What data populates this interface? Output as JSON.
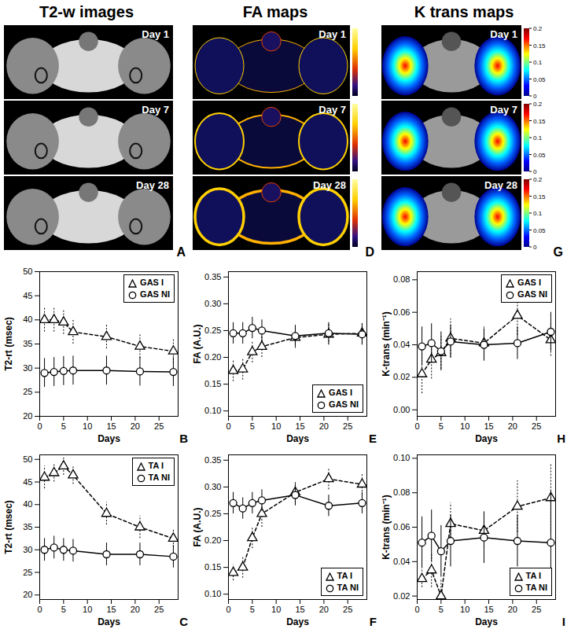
{
  "image_panels": [
    {
      "title": "T2-w images",
      "panel": "A",
      "days": [
        "Day 1",
        "Day 7",
        "Day 28"
      ]
    },
    {
      "title": "FA maps",
      "panel": "D",
      "days": [
        "Day 1",
        "Day 7",
        "Day 28"
      ]
    },
    {
      "title": "K trans maps",
      "panel": "G",
      "days": [
        "Day 1",
        "Day 7",
        "Day 28"
      ],
      "colorbar": {
        "range": [
          0,
          0.2
        ],
        "ticks": [
          0,
          0.05,
          0.1,
          0.15,
          0.2
        ]
      }
    }
  ],
  "chart_data": [
    {
      "type": "line",
      "panel": "B",
      "x_label": "Days",
      "y_label": "T2-rt (msec)",
      "x": [
        1,
        3,
        5,
        7,
        14,
        21,
        28
      ],
      "xlim": [
        0,
        29
      ],
      "xticks": [
        0,
        5,
        10,
        15,
        20,
        25
      ],
      "ylim": [
        20,
        50
      ],
      "yticks": [
        20,
        25,
        30,
        35,
        40,
        45,
        50
      ],
      "grid": false,
      "legend": "top-right",
      "series": [
        {
          "name": "GAS I",
          "color": "#000000",
          "marker": "triangle",
          "line_style": "dashed",
          "values": [
            40,
            40,
            39.5,
            37.5,
            36.5,
            34.5,
            33.5
          ],
          "errors": [
            2.5,
            2.5,
            2.5,
            2.5,
            2.5,
            2.5,
            2.5
          ]
        },
        {
          "name": "GAS NI",
          "color": "#000000",
          "marker": "circle",
          "line_style": "solid",
          "values": [
            29,
            29.2,
            29.4,
            29.5,
            29.5,
            29.3,
            29.2
          ],
          "errors": [
            3,
            3,
            3,
            3,
            3,
            3,
            3
          ]
        }
      ]
    },
    {
      "type": "line",
      "panel": "E",
      "x_label": "Days",
      "y_label": "FA (A.U.)",
      "x": [
        1,
        3,
        5,
        7,
        14,
        21,
        28
      ],
      "xlim": [
        0,
        29
      ],
      "xticks": [
        0,
        5,
        10,
        15,
        20,
        25
      ],
      "ylim": [
        0.09,
        0.36
      ],
      "yticks": [
        {
          "value": 0.1,
          "label": "0.10"
        },
        {
          "value": 0.15,
          "label": "0.15"
        },
        {
          "value": 0.2,
          "label": "0.20"
        },
        {
          "value": 0.25,
          "label": "0.25"
        },
        {
          "value": 0.3,
          "label": "0.30"
        },
        {
          "value": 0.35,
          "label": "0.35"
        }
      ],
      "grid": false,
      "legend": "bottom-right",
      "series": [
        {
          "name": "GAS I",
          "color": "#000000",
          "marker": "triangle",
          "line_style": "dashed",
          "values": [
            0.175,
            0.178,
            0.21,
            0.22,
            0.237,
            0.243,
            0.245
          ],
          "errors": [
            0.02,
            0.02,
            0.02,
            0.02,
            0.02,
            0.02,
            0.02
          ]
        },
        {
          "name": "GAS NI",
          "color": "#000000",
          "marker": "circle",
          "line_style": "solid",
          "values": [
            0.245,
            0.245,
            0.255,
            0.25,
            0.24,
            0.245,
            0.243
          ],
          "errors": [
            0.02,
            0.02,
            0.02,
            0.02,
            0.02,
            0.02,
            0.02
          ]
        }
      ]
    },
    {
      "type": "line",
      "panel": "H",
      "x_label": "Days",
      "y_label": "K-trans (min⁻¹)",
      "x": [
        1,
        3,
        5,
        7,
        14,
        21,
        28
      ],
      "xlim": [
        0,
        29
      ],
      "xticks": [
        0,
        5,
        10,
        15,
        20,
        25
      ],
      "ylim": [
        -0.004,
        0.085
      ],
      "yticks": [
        {
          "value": 0,
          "label": "0.00"
        },
        {
          "value": 0.02,
          "label": "0.02"
        },
        {
          "value": 0.04,
          "label": "0.04"
        },
        {
          "value": 0.06,
          "label": "0.06"
        },
        {
          "value": 0.08,
          "label": "0.08"
        }
      ],
      "grid": false,
      "legend": "top-right",
      "series": [
        {
          "name": "GAS I",
          "color": "#000000",
          "marker": "triangle",
          "line_style": "dashed",
          "values": [
            0.022,
            0.031,
            0.035,
            0.044,
            0.041,
            0.058,
            0.043
          ],
          "errors": [
            0.012,
            0.012,
            0.01,
            0.012,
            0.01,
            0.012,
            0.01
          ]
        },
        {
          "name": "GAS NI",
          "color": "#000000",
          "marker": "circle",
          "line_style": "solid",
          "values": [
            0.039,
            0.041,
            0.036,
            0.042,
            0.04,
            0.041,
            0.048
          ],
          "errors": [
            0.012,
            0.012,
            0.012,
            0.01,
            0.01,
            0.01,
            0.012
          ]
        }
      ]
    },
    {
      "type": "line",
      "panel": "C",
      "x_label": "Days",
      "y_label": "T2-rt (msec)",
      "x": [
        1,
        3,
        5,
        7,
        14,
        21,
        28
      ],
      "xlim": [
        0,
        29
      ],
      "xticks": [
        0,
        5,
        10,
        15,
        20,
        25
      ],
      "ylim": [
        19,
        51
      ],
      "yticks": [
        20,
        25,
        30,
        35,
        40,
        45,
        50
      ],
      "grid": false,
      "legend": "top-right",
      "series": [
        {
          "name": "TA I",
          "color": "#000000",
          "marker": "triangle",
          "line_style": "dashed",
          "values": [
            46,
            47,
            48.5,
            46.5,
            38,
            35,
            32.5
          ],
          "errors": [
            2.5,
            2,
            2,
            2,
            2.5,
            2.5,
            2
          ]
        },
        {
          "name": "TA NI",
          "color": "#000000",
          "marker": "circle",
          "line_style": "solid",
          "values": [
            30,
            30.5,
            30,
            29.8,
            29,
            29,
            28.5
          ],
          "errors": [
            2.5,
            2.5,
            2.5,
            2.5,
            2.5,
            2.5,
            2.5
          ]
        }
      ]
    },
    {
      "type": "line",
      "panel": "F",
      "x_label": "Days",
      "y_label": "FA (A.U.)",
      "x": [
        1,
        3,
        5,
        7,
        14,
        21,
        28
      ],
      "xlim": [
        0,
        29
      ],
      "xticks": [
        0,
        5,
        10,
        15,
        20,
        25
      ],
      "ylim": [
        0.09,
        0.36
      ],
      "yticks": [
        {
          "value": 0.1,
          "label": "0.10"
        },
        {
          "value": 0.15,
          "label": "0.15"
        },
        {
          "value": 0.2,
          "label": "0.20"
        },
        {
          "value": 0.25,
          "label": "0.25"
        },
        {
          "value": 0.3,
          "label": "0.30"
        },
        {
          "value": 0.35,
          "label": "0.35"
        }
      ],
      "grid": false,
      "legend": "bottom-right",
      "series": [
        {
          "name": "TA I",
          "color": "#000000",
          "marker": "triangle",
          "line_style": "dashed",
          "values": [
            0.14,
            0.15,
            0.205,
            0.25,
            0.29,
            0.315,
            0.305
          ],
          "errors": [
            0.015,
            0.02,
            0.02,
            0.025,
            0.02,
            0.02,
            0.02
          ]
        },
        {
          "name": "TA NI",
          "color": "#000000",
          "marker": "circle",
          "line_style": "solid",
          "values": [
            0.27,
            0.26,
            0.27,
            0.275,
            0.285,
            0.265,
            0.27
          ],
          "errors": [
            0.02,
            0.02,
            0.02,
            0.02,
            0.02,
            0.02,
            0.02
          ]
        }
      ]
    },
    {
      "type": "line",
      "panel": "I",
      "x_label": "Days",
      "y_label": "K-trans (min⁻¹)",
      "x": [
        1,
        3,
        5,
        7,
        14,
        21,
        28
      ],
      "xlim": [
        0,
        29
      ],
      "xticks": [
        0,
        5,
        10,
        15,
        20,
        25
      ],
      "ylim": [
        0.018,
        0.102
      ],
      "yticks": [
        {
          "value": 0.02,
          "label": "0.02"
        },
        {
          "value": 0.04,
          "label": "0.04"
        },
        {
          "value": 0.06,
          "label": "0.06"
        },
        {
          "value": 0.08,
          "label": "0.08"
        },
        {
          "value": 0.1,
          "label": "0.10"
        }
      ],
      "grid": false,
      "legend": "bottom-right",
      "series": [
        {
          "name": "TA I",
          "color": "#000000",
          "marker": "triangle",
          "line_style": "dashed",
          "values": [
            0.03,
            0.035,
            0.02,
            0.062,
            0.058,
            0.072,
            0.077
          ],
          "errors": [
            0.005,
            0.01,
            0.01,
            0.012,
            0.01,
            0.015,
            0.02
          ]
        },
        {
          "name": "TA NI",
          "color": "#000000",
          "marker": "circle",
          "line_style": "solid",
          "values": [
            0.051,
            0.055,
            0.046,
            0.052,
            0.054,
            0.052,
            0.051
          ],
          "errors": [
            0.015,
            0.015,
            0.015,
            0.015,
            0.015,
            0.015,
            0.03
          ]
        }
      ]
    }
  ]
}
